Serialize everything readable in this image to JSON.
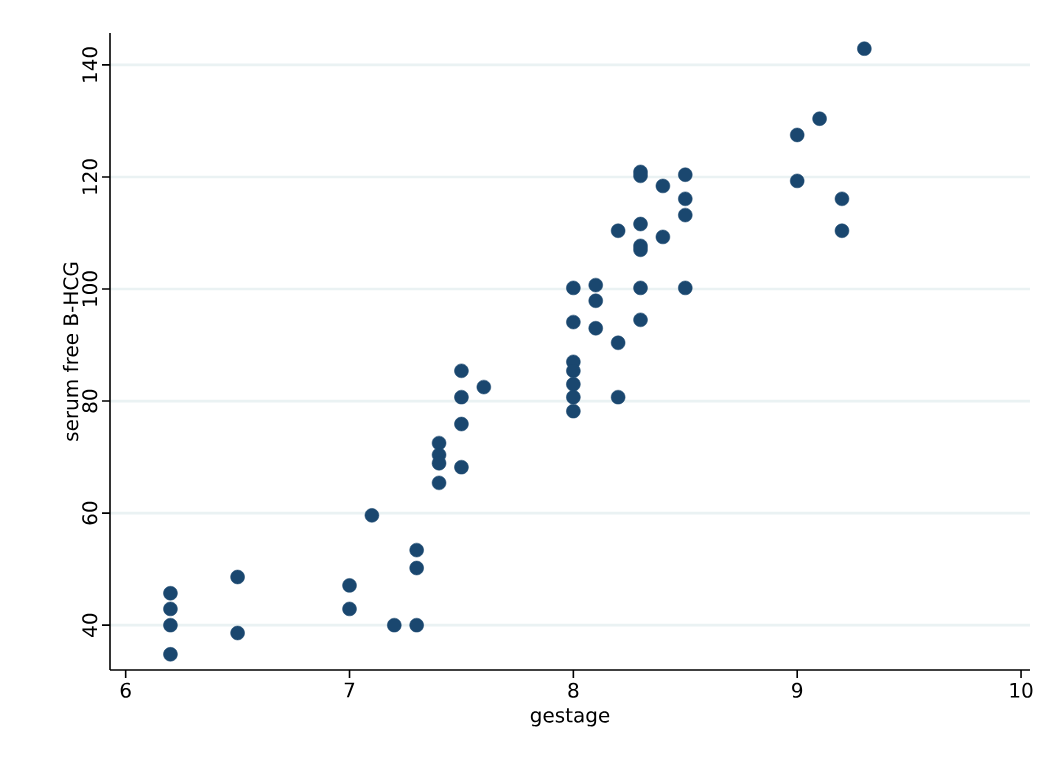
{
  "chart_data": {
    "type": "scatter",
    "xlabel": "gestage",
    "ylabel": "serum free B-HCG",
    "x": [
      6.2,
      6.2,
      6.2,
      6.2,
      6.5,
      6.5,
      7.0,
      7.0,
      7.1,
      7.2,
      7.3,
      7.3,
      7.3,
      7.4,
      7.4,
      7.4,
      7.4,
      7.5,
      7.5,
      7.5,
      7.5,
      7.6,
      8.0,
      8.0,
      8.0,
      8.0,
      8.0,
      8.0,
      8.0,
      8.1,
      8.1,
      8.1,
      8.2,
      8.2,
      8.2,
      8.3,
      8.3,
      8.3,
      8.3,
      8.3,
      8.3,
      8.3,
      8.4,
      8.4,
      8.5,
      8.5,
      8.5,
      8.5,
      9.0,
      9.0,
      9.1,
      9.2,
      9.2,
      9.3
    ],
    "values": [
      45.7,
      42.9,
      40,
      34.8,
      48.6,
      38.6,
      47.1,
      42.9,
      59.6,
      40,
      53.4,
      50.2,
      40,
      72.5,
      70.4,
      68.9,
      65.4,
      85.4,
      80.7,
      75.9,
      68.2,
      82.5,
      100.2,
      94.1,
      87,
      85.4,
      83,
      80.7,
      78.2,
      100.7,
      97.9,
      93,
      110.4,
      90.4,
      80.7,
      120.9,
      120.2,
      111.6,
      107.7,
      107,
      100.2,
      94.5,
      118.4,
      109.3,
      120.4,
      116.1,
      113.2,
      100.2,
      127.5,
      119.3,
      130.4,
      116.1,
      110.4,
      142.9
    ],
    "color": "#1a476f",
    "grid": "y",
    "xlim": [
      5.93,
      10.04
    ],
    "ylim": [
      32,
      145.7
    ],
    "xticks": [
      6,
      7,
      8,
      9,
      10
    ],
    "yticks": [
      40,
      60,
      80,
      100,
      120,
      140
    ]
  }
}
